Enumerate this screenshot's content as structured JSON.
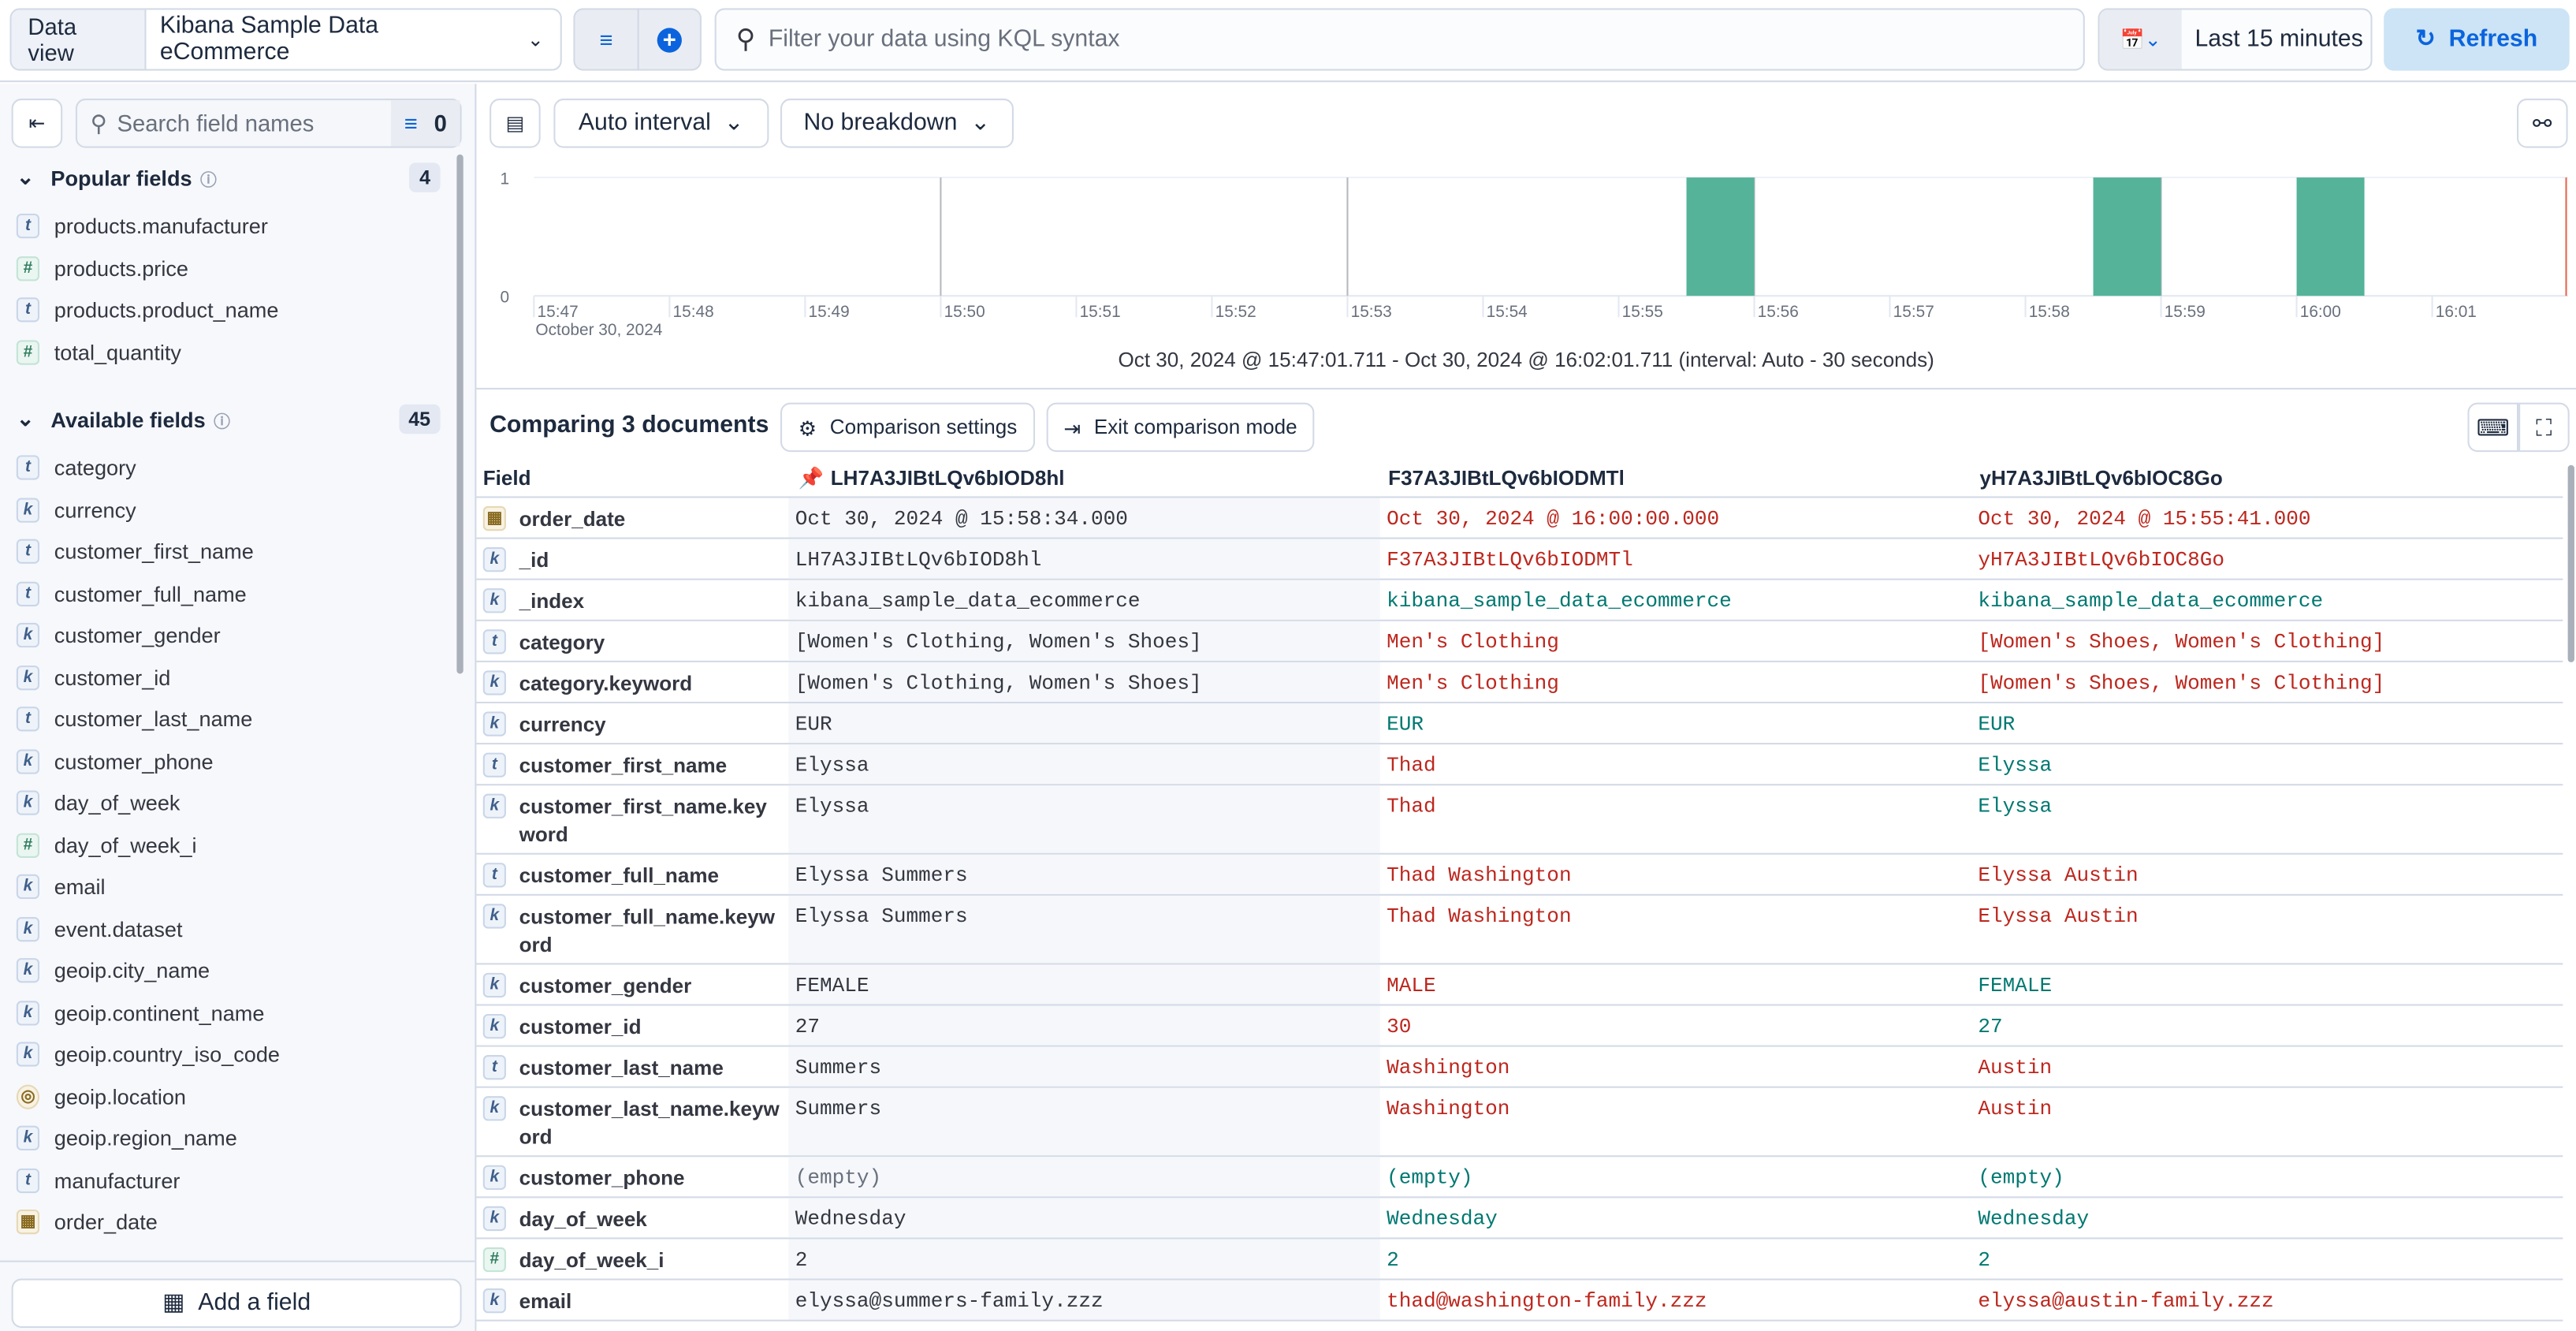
{
  "topbar": {
    "data_view_label": "Data view",
    "data_view_value": "Kibana Sample Data eCommerce",
    "query_placeholder": "Filter your data using KQL syntax",
    "time_range": "Last 15 minutes",
    "refresh": "Refresh"
  },
  "sidebar": {
    "search_placeholder": "Search field names",
    "filter_count": "0",
    "popular_title": "Popular fields",
    "popular_count": "4",
    "popular": [
      {
        "name": "products.manufacturer",
        "type": "t"
      },
      {
        "name": "products.price",
        "type": "#"
      },
      {
        "name": "products.product_name",
        "type": "t"
      },
      {
        "name": "total_quantity",
        "type": "#"
      }
    ],
    "available_title": "Available fields",
    "available_count": "45",
    "available": [
      {
        "name": "category",
        "type": "t"
      },
      {
        "name": "currency",
        "type": "k"
      },
      {
        "name": "customer_first_name",
        "type": "t"
      },
      {
        "name": "customer_full_name",
        "type": "t"
      },
      {
        "name": "customer_gender",
        "type": "k"
      },
      {
        "name": "customer_id",
        "type": "k"
      },
      {
        "name": "customer_last_name",
        "type": "t"
      },
      {
        "name": "customer_phone",
        "type": "k"
      },
      {
        "name": "day_of_week",
        "type": "k"
      },
      {
        "name": "day_of_week_i",
        "type": "#"
      },
      {
        "name": "email",
        "type": "k"
      },
      {
        "name": "event.dataset",
        "type": "k"
      },
      {
        "name": "geoip.city_name",
        "type": "k"
      },
      {
        "name": "geoip.continent_name",
        "type": "k"
      },
      {
        "name": "geoip.country_iso_code",
        "type": "k"
      },
      {
        "name": "geoip.location",
        "type": "geo"
      },
      {
        "name": "geoip.region_name",
        "type": "k"
      },
      {
        "name": "manufacturer",
        "type": "t"
      },
      {
        "name": "order_date",
        "type": "date"
      }
    ],
    "add_field": "Add a field"
  },
  "toolbar": {
    "interval": "Auto interval",
    "breakdown": "No breakdown"
  },
  "chart_data": {
    "type": "bar",
    "x_ticks": [
      "15:47",
      "15:48",
      "15:49",
      "15:50",
      "15:51",
      "15:52",
      "15:53",
      "15:54",
      "15:55",
      "15:56",
      "15:57",
      "15:58",
      "15:59",
      "16:00",
      "16:01"
    ],
    "date_label": "October 30, 2024",
    "y_ticks": [
      "0",
      "1"
    ],
    "ylim": [
      0,
      1
    ],
    "bars": [
      {
        "start": "15:55:30",
        "end": "15:56:00",
        "value": 1
      },
      {
        "start": "15:58:30",
        "end": "15:59:00",
        "value": 1
      },
      {
        "start": "16:00:00",
        "end": "16:00:30",
        "value": 1
      }
    ],
    "bar_color": "#54b399",
    "range_text": "Oct 30, 2024 @ 15:47:01.711 - Oct 30, 2024 @ 16:02:01.711 (interval: Auto - 30 seconds)"
  },
  "compare": {
    "title": "Comparing 3 documents",
    "settings": "Comparison settings",
    "exit": "Exit comparison mode",
    "field_header": "Field",
    "docs": [
      "LH7A3JIBtLQv6bIOD8hl",
      "F37A3JIBtLQv6bIODMTl",
      "yH7A3JIBtLQv6bIOC8Go"
    ],
    "rows": [
      {
        "field": "order_date",
        "type": "date",
        "values": [
          "Oct 30, 2024 @ 15:58:34.000",
          "Oct 30, 2024 @ 16:00:00.000",
          "Oct 30, 2024 @ 15:55:41.000"
        ],
        "match": [
          false,
          false
        ]
      },
      {
        "field": "_id",
        "type": "k",
        "values": [
          "LH7A3JIBtLQv6bIOD8hl",
          "F37A3JIBtLQv6bIODMTl",
          "yH7A3JIBtLQv6bIOC8Go"
        ],
        "match": [
          false,
          false
        ]
      },
      {
        "field": "_index",
        "type": "k",
        "values": [
          "kibana_sample_data_ecommerce",
          "kibana_sample_data_ecommerce",
          "kibana_sample_data_ecommerce"
        ],
        "match": [
          true,
          true
        ]
      },
      {
        "field": "category",
        "type": "t",
        "values": [
          "[Women's Clothing, Women's Shoes]",
          "Men's Clothing",
          "[Women's Shoes, Women's Clothing]"
        ],
        "match": [
          false,
          false
        ]
      },
      {
        "field": "category.keyword",
        "type": "k",
        "values": [
          "[Women's Clothing, Women's Shoes]",
          "Men's Clothing",
          "[Women's Shoes, Women's Clothing]"
        ],
        "match": [
          false,
          false
        ]
      },
      {
        "field": "currency",
        "type": "k",
        "values": [
          "EUR",
          "EUR",
          "EUR"
        ],
        "match": [
          true,
          true
        ]
      },
      {
        "field": "customer_first_name",
        "type": "t",
        "values": [
          "Elyssa",
          "Thad",
          "Elyssa"
        ],
        "match": [
          false,
          true
        ]
      },
      {
        "field": "customer_first_name.keyword",
        "type": "k",
        "values": [
          "Elyssa",
          "Thad",
          "Elyssa"
        ],
        "match": [
          false,
          true
        ]
      },
      {
        "field": "customer_full_name",
        "type": "t",
        "values": [
          "Elyssa Summers",
          "Thad Washington",
          "Elyssa Austin"
        ],
        "match": [
          false,
          false
        ]
      },
      {
        "field": "customer_full_name.keyword",
        "type": "k",
        "values": [
          "Elyssa Summers",
          "Thad Washington",
          "Elyssa Austin"
        ],
        "match": [
          false,
          false
        ]
      },
      {
        "field": "customer_gender",
        "type": "k",
        "values": [
          "FEMALE",
          "MALE",
          "FEMALE"
        ],
        "match": [
          false,
          true
        ]
      },
      {
        "field": "customer_id",
        "type": "k",
        "values": [
          "27",
          "30",
          "27"
        ],
        "match": [
          false,
          true
        ]
      },
      {
        "field": "customer_last_name",
        "type": "t",
        "values": [
          "Summers",
          "Washington",
          "Austin"
        ],
        "match": [
          false,
          false
        ]
      },
      {
        "field": "customer_last_name.keyword",
        "type": "k",
        "values": [
          "Summers",
          "Washington",
          "Austin"
        ],
        "match": [
          false,
          false
        ]
      },
      {
        "field": "customer_phone",
        "type": "k",
        "values": [
          "(empty)",
          "(empty)",
          "(empty)"
        ],
        "match": [
          true,
          true
        ]
      },
      {
        "field": "day_of_week",
        "type": "k",
        "values": [
          "Wednesday",
          "Wednesday",
          "Wednesday"
        ],
        "match": [
          true,
          true
        ]
      },
      {
        "field": "day_of_week_i",
        "type": "#",
        "values": [
          "2",
          "2",
          "2"
        ],
        "match": [
          true,
          true
        ]
      },
      {
        "field": "email",
        "type": "k",
        "values": [
          "elyssa@summers-family.zzz",
          "thad@washington-family.zzz",
          "elyssa@austin-family.zzz"
        ],
        "match": [
          false,
          false
        ]
      }
    ]
  }
}
